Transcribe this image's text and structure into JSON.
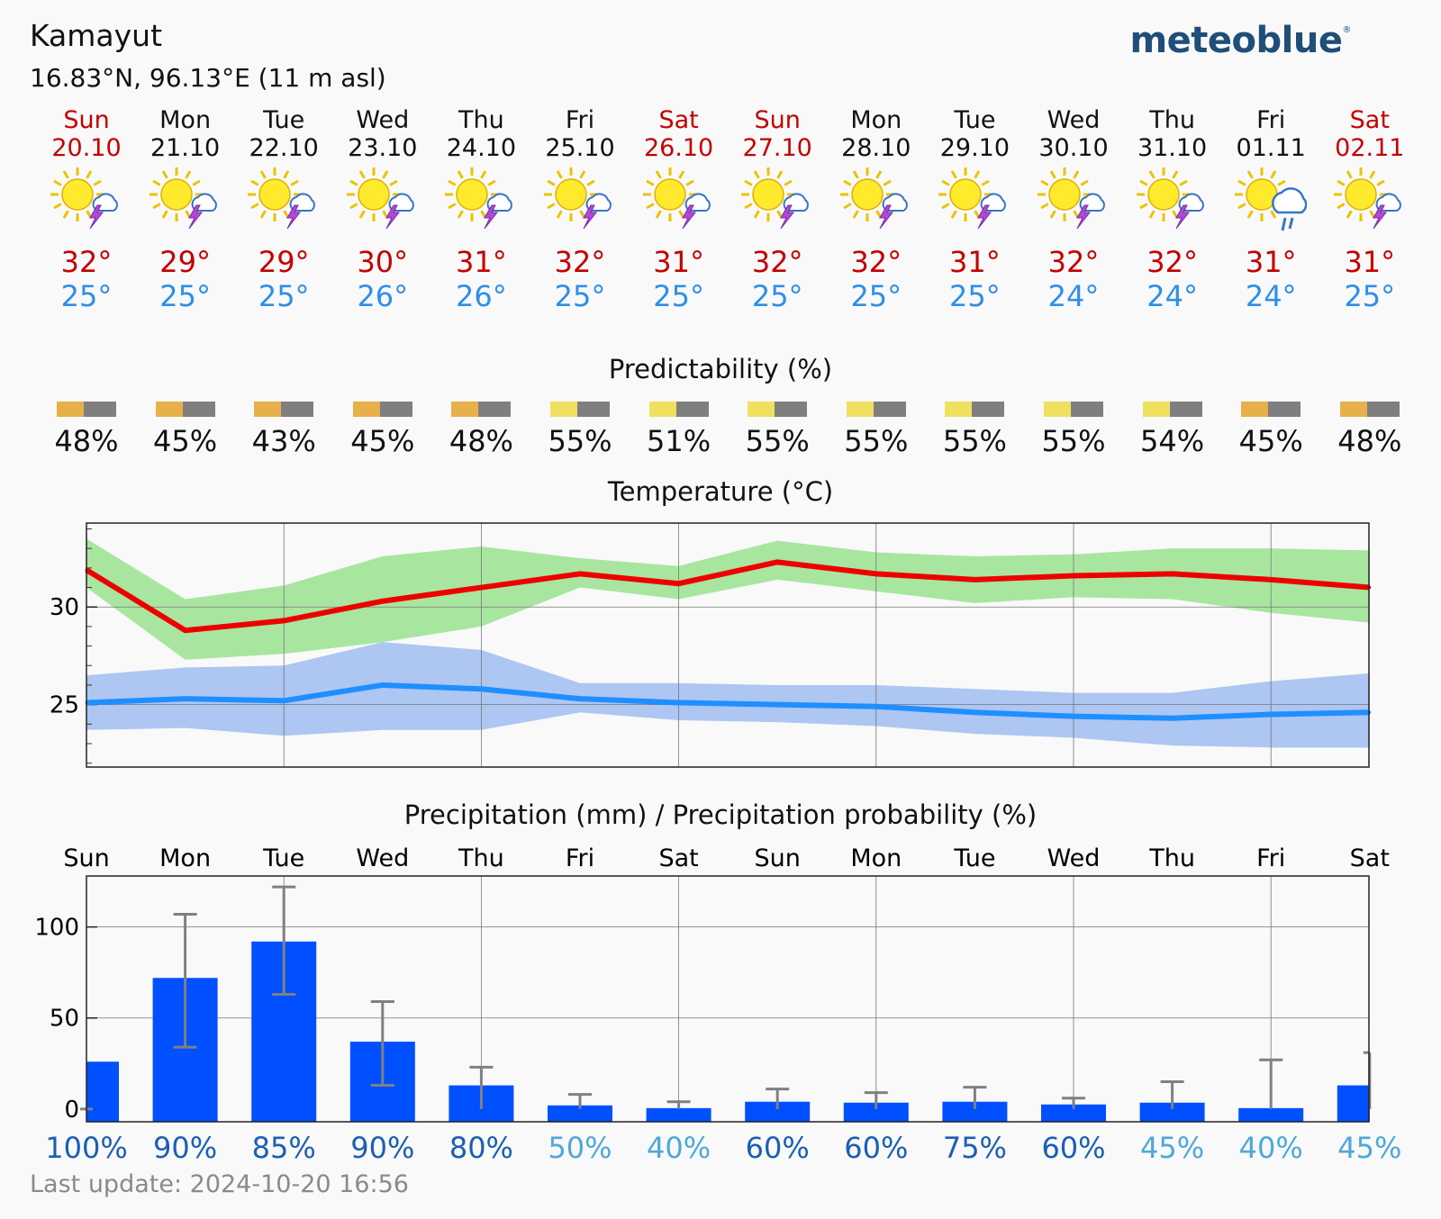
{
  "header": {
    "location": "Kamayut",
    "coords": "16.83°N, 96.13°E (11 m asl)",
    "brand": "meteoblue",
    "brand_mark": "®"
  },
  "days": [
    {
      "day": "Sun",
      "date": "20.10",
      "weekend": true,
      "icon": "sun-thunderstorm-icon",
      "tmax": "32°",
      "tmin": "25°",
      "predictability": "48%",
      "pred_color": "#e8b04a",
      "precip_prob": "100%",
      "prob_color": "#1a5fb4"
    },
    {
      "day": "Mon",
      "date": "21.10",
      "weekend": false,
      "icon": "sun-thunderstorm-icon",
      "tmax": "29°",
      "tmin": "25°",
      "predictability": "45%",
      "pred_color": "#e8b04a",
      "precip_prob": "90%",
      "prob_color": "#1a5fb4"
    },
    {
      "day": "Tue",
      "date": "22.10",
      "weekend": false,
      "icon": "sun-thunderstorm-icon",
      "tmax": "29°",
      "tmin": "25°",
      "predictability": "43%",
      "pred_color": "#e8b04a",
      "precip_prob": "85%",
      "prob_color": "#1a5fb4"
    },
    {
      "day": "Wed",
      "date": "23.10",
      "weekend": false,
      "icon": "sun-thunderstorm-icon",
      "tmax": "30°",
      "tmin": "26°",
      "predictability": "45%",
      "pred_color": "#e8b04a",
      "precip_prob": "90%",
      "prob_color": "#1a5fb4"
    },
    {
      "day": "Thu",
      "date": "24.10",
      "weekend": false,
      "icon": "sun-thunderstorm-icon",
      "tmax": "31°",
      "tmin": "26°",
      "predictability": "48%",
      "pred_color": "#e8b04a",
      "precip_prob": "80%",
      "prob_color": "#1a5fb4"
    },
    {
      "day": "Fri",
      "date": "25.10",
      "weekend": false,
      "icon": "sun-thunderstorm-icon",
      "tmax": "32°",
      "tmin": "25°",
      "predictability": "55%",
      "pred_color": "#f0e060",
      "precip_prob": "50%",
      "prob_color": "#4ea8d8"
    },
    {
      "day": "Sat",
      "date": "26.10",
      "weekend": true,
      "icon": "sun-thunderstorm-icon",
      "tmax": "31°",
      "tmin": "25°",
      "predictability": "51%",
      "pred_color": "#f0e060",
      "precip_prob": "40%",
      "prob_color": "#4ea8d8"
    },
    {
      "day": "Sun",
      "date": "27.10",
      "weekend": true,
      "icon": "sun-thunderstorm-icon",
      "tmax": "32°",
      "tmin": "25°",
      "predictability": "55%",
      "pred_color": "#f0e060",
      "precip_prob": "60%",
      "prob_color": "#1a5fb4"
    },
    {
      "day": "Mon",
      "date": "28.10",
      "weekend": false,
      "icon": "sun-thunderstorm-icon",
      "tmax": "32°",
      "tmin": "25°",
      "predictability": "55%",
      "pred_color": "#f0e060",
      "precip_prob": "60%",
      "prob_color": "#1a5fb4"
    },
    {
      "day": "Tue",
      "date": "29.10",
      "weekend": false,
      "icon": "sun-thunderstorm-icon",
      "tmax": "31°",
      "tmin": "25°",
      "predictability": "55%",
      "pred_color": "#f0e060",
      "precip_prob": "75%",
      "prob_color": "#1a5fb4"
    },
    {
      "day": "Wed",
      "date": "30.10",
      "weekend": false,
      "icon": "sun-thunderstorm-icon",
      "tmax": "32°",
      "tmin": "24°",
      "predictability": "55%",
      "pred_color": "#f0e060",
      "precip_prob": "60%",
      "prob_color": "#1a5fb4"
    },
    {
      "day": "Thu",
      "date": "31.10",
      "weekend": false,
      "icon": "sun-thunderstorm-icon",
      "tmax": "32°",
      "tmin": "24°",
      "predictability": "54%",
      "pred_color": "#f0e060",
      "precip_prob": "45%",
      "prob_color": "#4ea8d8"
    },
    {
      "day": "Fri",
      "date": "01.11",
      "weekend": false,
      "icon": "sun-rain-icon",
      "tmax": "31°",
      "tmin": "24°",
      "predictability": "45%",
      "pred_color": "#e8b04a",
      "precip_prob": "40%",
      "prob_color": "#4ea8d8"
    },
    {
      "day": "Sat",
      "date": "02.11",
      "weekend": true,
      "icon": "sun-thunderstorm-icon",
      "tmax": "31°",
      "tmin": "25°",
      "predictability": "48%",
      "pred_color": "#e8b04a",
      "precip_prob": "45%",
      "prob_color": "#4ea8d8"
    }
  ],
  "predictability_title": "Predictability (%)",
  "footer": "Last update: 2024-10-20 16:56",
  "colors": {
    "max_line": "#ee0000",
    "max_band": "#a8e6a0",
    "min_line": "#1e8fff",
    "min_band": "#adc6f2",
    "bar": "#0050ff",
    "whisker": "#808080",
    "grid": "#777777"
  },
  "chart_data": [
    {
      "type": "line",
      "title": "Temperature (°C)",
      "x": [
        0,
        1,
        2,
        3,
        4,
        5,
        6,
        7,
        8,
        9,
        10,
        11,
        12,
        13
      ],
      "ylim": [
        21.8,
        34.3
      ],
      "yticks": [
        25,
        30
      ],
      "series": [
        {
          "name": "max",
          "values": [
            31.9,
            28.8,
            29.3,
            30.3,
            31.0,
            31.7,
            31.2,
            32.3,
            31.7,
            31.4,
            31.6,
            31.7,
            31.4,
            31.0
          ],
          "upper": [
            33.5,
            30.4,
            31.1,
            32.6,
            33.1,
            32.5,
            32.1,
            33.4,
            32.8,
            32.6,
            32.7,
            33.0,
            33.0,
            32.9
          ],
          "lower": [
            31.0,
            27.3,
            27.6,
            28.2,
            29.0,
            31.0,
            30.4,
            31.4,
            30.8,
            30.2,
            30.5,
            30.4,
            29.7,
            29.2
          ]
        },
        {
          "name": "min",
          "values": [
            25.1,
            25.3,
            25.2,
            26.0,
            25.8,
            25.3,
            25.1,
            25.0,
            24.9,
            24.6,
            24.4,
            24.3,
            24.5,
            24.6
          ],
          "upper": [
            26.5,
            26.9,
            27.0,
            28.2,
            27.8,
            26.1,
            26.1,
            26.0,
            26.0,
            25.8,
            25.6,
            25.6,
            26.2,
            26.6
          ],
          "lower": [
            23.7,
            23.8,
            23.4,
            23.7,
            23.7,
            24.6,
            24.2,
            24.1,
            23.9,
            23.5,
            23.3,
            22.9,
            22.8,
            22.8
          ]
        }
      ]
    },
    {
      "type": "bar",
      "title": "Precipitation (mm) / Precipitation probability (%)",
      "categories": [
        "Sun",
        "Mon",
        "Tue",
        "Wed",
        "Thu",
        "Fri",
        "Sat",
        "Sun",
        "Mon",
        "Tue",
        "Wed",
        "Thu",
        "Fri",
        "Sat"
      ],
      "values": [
        26,
        72,
        92,
        37,
        13,
        2,
        0.5,
        4,
        3.5,
        4,
        2.5,
        3.5,
        0.5,
        13
      ],
      "err_low": [
        0,
        34,
        63,
        13,
        0,
        0,
        0,
        0,
        0,
        0,
        0,
        0,
        0,
        0
      ],
      "err_high": [
        0,
        107,
        122,
        59,
        23,
        8,
        4,
        11,
        9,
        12,
        6,
        15,
        27,
        31
      ],
      "ylim": [
        -7,
        128
      ],
      "yticks": [
        0,
        50,
        100
      ],
      "probability": [
        "100%",
        "90%",
        "85%",
        "90%",
        "80%",
        "50%",
        "40%",
        "60%",
        "60%",
        "75%",
        "60%",
        "45%",
        "40%",
        "45%"
      ]
    }
  ]
}
